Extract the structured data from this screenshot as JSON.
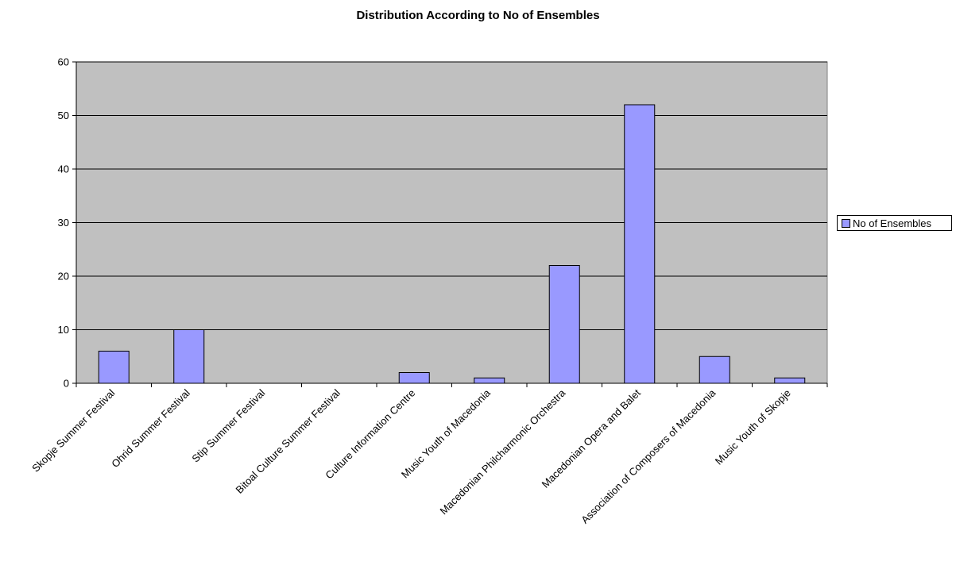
{
  "chart_data": {
    "type": "bar",
    "title": "Distribution According to No of Ensembles",
    "xlabel": "",
    "ylabel": "",
    "categories": [
      "Skopje Summer Festival",
      "Ohrid Summer Festival",
      "Stip Summer Festival",
      "Bitoal Culture Summer Festival",
      "Culture Information Centre",
      "Music Youth of Macedonia",
      "Macedonian Philcharmonic Orchestra",
      "Macedonian Opera and Balet",
      "Association of Composers of Macedonia",
      "Music Youth of Skopje"
    ],
    "series": [
      {
        "name": "No of Ensembles",
        "values": [
          6,
          10,
          0,
          0,
          2,
          1,
          22,
          52,
          5,
          1
        ]
      }
    ],
    "ylim": [
      0,
      60
    ],
    "yticks": [
      0,
      10,
      20,
      30,
      40,
      50,
      60
    ],
    "grid": true,
    "legend_position": "right",
    "colors": {
      "bar_fill": "#9999FF",
      "plot_background": "#C0C0C0",
      "gridline": "#000000",
      "border": "#808080"
    }
  }
}
